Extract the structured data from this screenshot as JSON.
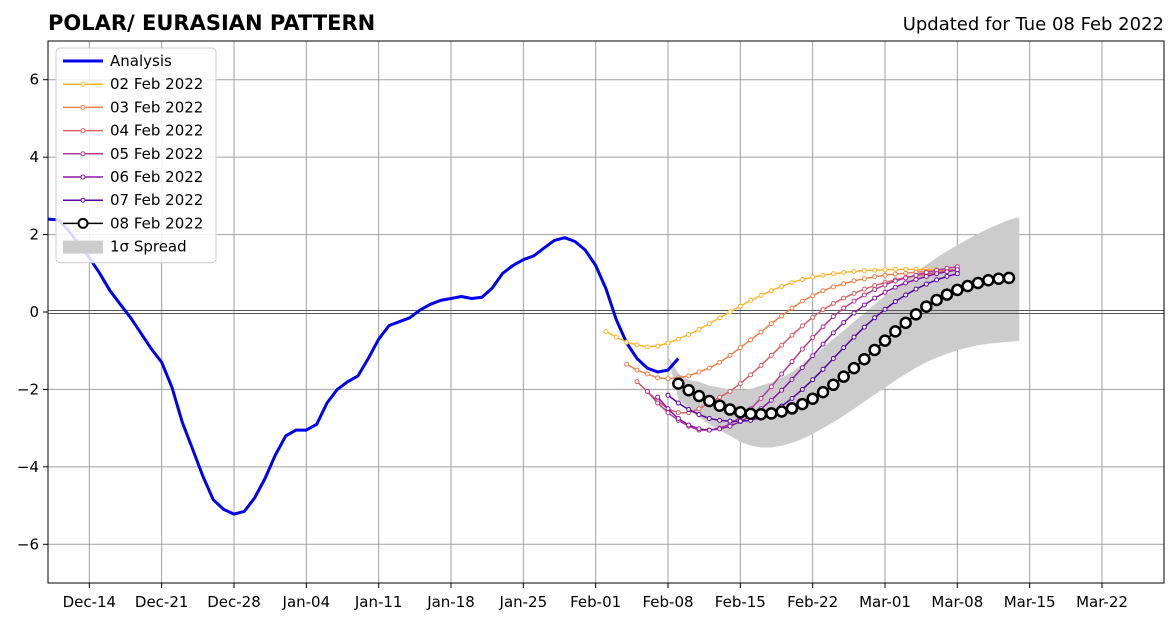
{
  "title_left": "POLAR/ EURASIAN  PATTERN",
  "title_right": "Updated for Tue 08 Feb 2022",
  "chart_data": {
    "type": "line",
    "title": "POLAR/ EURASIAN  PATTERN",
    "subtitle": "Updated for Tue 08 Feb 2022",
    "xlim": [
      "2021-12-10",
      "2022-03-28"
    ],
    "ylim": [
      -7,
      7
    ],
    "grid": true,
    "legend_position": "top-left",
    "x_ticks": [
      {
        "date": "2021-12-14",
        "label": "Dec-14"
      },
      {
        "date": "2021-12-21",
        "label": "Dec-21"
      },
      {
        "date": "2021-12-28",
        "label": "Dec-28"
      },
      {
        "date": "2022-01-04",
        "label": "Jan-04"
      },
      {
        "date": "2022-01-11",
        "label": "Jan-11"
      },
      {
        "date": "2022-01-18",
        "label": "Jan-18"
      },
      {
        "date": "2022-01-25",
        "label": "Jan-25"
      },
      {
        "date": "2022-02-01",
        "label": "Feb-01"
      },
      {
        "date": "2022-02-08",
        "label": "Feb-08"
      },
      {
        "date": "2022-02-15",
        "label": "Feb-15"
      },
      {
        "date": "2022-02-22",
        "label": "Feb-22"
      },
      {
        "date": "2022-03-01",
        "label": "Mar-01"
      },
      {
        "date": "2022-03-08",
        "label": "Mar-08"
      },
      {
        "date": "2022-03-15",
        "label": "Mar-15"
      },
      {
        "date": "2022-03-22",
        "label": "Mar-22"
      }
    ],
    "y_ticks": [
      {
        "value": 6,
        "label": "6"
      },
      {
        "value": 4,
        "label": "4"
      },
      {
        "value": 2,
        "label": "2"
      },
      {
        "value": 0,
        "label": "0"
      },
      {
        "value": -2,
        "label": "−2"
      },
      {
        "value": -4,
        "label": "−4"
      },
      {
        "value": -6,
        "label": "−6"
      }
    ],
    "series": [
      {
        "name": "Analysis",
        "color": "#0000ee",
        "style": "analysis",
        "start": "2021-12-10",
        "values": [
          2.4,
          2.38,
          2.1,
          1.75,
          1.4,
          1.0,
          0.55,
          0.2,
          -0.15,
          -0.55,
          -0.95,
          -1.3,
          -1.95,
          -2.85,
          -3.55,
          -4.25,
          -4.85,
          -5.1,
          -5.22,
          -5.15,
          -4.8,
          -4.3,
          -3.7,
          -3.2,
          -3.05,
          -3.05,
          -2.9,
          -2.35,
          -2.0,
          -1.8,
          -1.65,
          -1.2,
          -0.7,
          -0.35,
          -0.25,
          -0.15,
          0.05,
          0.2,
          0.3,
          0.35,
          0.4,
          0.35,
          0.38,
          0.62,
          1.0,
          1.2,
          1.35,
          1.45,
          1.65,
          1.85,
          1.92,
          1.82,
          1.6,
          1.2,
          0.6,
          -0.2,
          -0.8,
          -1.2,
          -1.45,
          -1.55,
          -1.5,
          -1.2
        ]
      },
      {
        "name": "02 Feb 2022",
        "color": "#fcb52b",
        "style": "forecast",
        "start": "2022-02-02",
        "values": [
          -0.5,
          -0.65,
          -0.78,
          -0.85,
          -0.9,
          -0.88,
          -0.8,
          -0.7,
          -0.58,
          -0.45,
          -0.3,
          -0.15,
          0.0,
          0.15,
          0.3,
          0.43,
          0.55,
          0.66,
          0.76,
          0.84,
          0.9,
          0.95,
          0.99,
          1.02,
          1.05,
          1.07,
          1.08,
          1.09,
          1.1,
          1.1,
          1.1,
          1.1,
          1.1,
          1.1
        ]
      },
      {
        "name": "03 Feb 2022",
        "color": "#f1804a",
        "style": "forecast",
        "start": "2022-02-04",
        "values": [
          -1.35,
          -1.5,
          -1.6,
          -1.7,
          -1.72,
          -1.7,
          -1.65,
          -1.55,
          -1.45,
          -1.3,
          -1.12,
          -0.92,
          -0.72,
          -0.52,
          -0.3,
          -0.1,
          0.1,
          0.28,
          0.42,
          0.55,
          0.65,
          0.73,
          0.8,
          0.86,
          0.91,
          0.95,
          0.98,
          1.0,
          1.03,
          1.05,
          1.07,
          1.08,
          1.09
        ]
      },
      {
        "name": "04 Feb 2022",
        "color": "#da5f66",
        "style": "forecast",
        "start": "2022-02-05",
        "values": [
          -1.8,
          -2.05,
          -2.3,
          -2.5,
          -2.6,
          -2.6,
          -2.5,
          -2.35,
          -2.2,
          -2.05,
          -1.85,
          -1.62,
          -1.38,
          -1.12,
          -0.86,
          -0.6,
          -0.36,
          -0.14,
          0.06,
          0.22,
          0.36,
          0.48,
          0.59,
          0.68,
          0.76,
          0.83,
          0.89,
          0.94,
          0.98,
          1.02,
          1.05,
          1.08
        ]
      },
      {
        "name": "05 Feb 2022",
        "color": "#b53a93",
        "style": "forecast",
        "start": "2022-02-06",
        "values": [
          -2.05,
          -2.35,
          -2.6,
          -2.8,
          -2.95,
          -3.05,
          -3.05,
          -3.0,
          -2.9,
          -2.72,
          -2.5,
          -2.23,
          -1.93,
          -1.6,
          -1.28,
          -0.96,
          -0.66,
          -0.38,
          -0.12,
          0.1,
          0.28,
          0.44,
          0.58,
          0.7,
          0.8,
          0.88,
          0.95,
          1.02,
          1.08,
          1.13,
          1.17
        ]
      },
      {
        "name": "06 Feb 2022",
        "color": "#8c17a6",
        "style": "forecast",
        "start": "2022-02-07",
        "values": [
          -2.2,
          -2.5,
          -2.75,
          -2.92,
          -3.02,
          -3.05,
          -3.02,
          -2.95,
          -2.83,
          -2.68,
          -2.5,
          -2.28,
          -2.02,
          -1.74,
          -1.44,
          -1.13,
          -0.83,
          -0.54,
          -0.27,
          -0.03,
          0.18,
          0.36,
          0.51,
          0.64,
          0.75,
          0.84,
          0.92,
          0.99,
          1.04,
          1.09
        ]
      },
      {
        "name": "07 Feb 2022",
        "color": "#5902a3",
        "style": "forecast",
        "start": "2022-02-08",
        "values": [
          -2.15,
          -2.35,
          -2.52,
          -2.65,
          -2.75,
          -2.8,
          -2.82,
          -2.82,
          -2.8,
          -2.72,
          -2.6,
          -2.43,
          -2.23,
          -2.0,
          -1.75,
          -1.48,
          -1.2,
          -0.92,
          -0.65,
          -0.39,
          -0.15,
          0.07,
          0.27,
          0.44,
          0.59,
          0.72,
          0.83,
          0.92,
          0.99
        ]
      },
      {
        "name": "08 Feb 2022",
        "color": "#000000",
        "style": "current",
        "start": "2022-02-09",
        "values": [
          -1.85,
          -2.02,
          -2.17,
          -2.3,
          -2.42,
          -2.52,
          -2.59,
          -2.63,
          -2.64,
          -2.62,
          -2.57,
          -2.49,
          -2.38,
          -2.24,
          -2.07,
          -1.88,
          -1.67,
          -1.45,
          -1.22,
          -0.98,
          -0.74,
          -0.5,
          -0.28,
          -0.06,
          0.14,
          0.31,
          0.45,
          0.57,
          0.67,
          0.75,
          0.82,
          0.86,
          0.88
        ]
      }
    ],
    "spread": {
      "name": "1σ Spread",
      "color": "#cccccc",
      "start": "2022-02-08",
      "upper": [
        -1.15,
        -1.58,
        -1.75,
        -1.8,
        -1.9,
        -1.95,
        -2.0,
        -2.02,
        -1.98,
        -1.9,
        -1.82,
        -1.7,
        -1.55,
        -1.35,
        -1.15,
        -0.93,
        -0.7,
        -0.48,
        -0.25,
        -0.03,
        0.2,
        0.42,
        0.63,
        0.83,
        1.03,
        1.22,
        1.4,
        1.57,
        1.73,
        1.88,
        2.02,
        2.15,
        2.27,
        2.38,
        2.45
      ],
      "lower": [
        -1.15,
        -2.25,
        -2.5,
        -2.72,
        -2.9,
        -3.05,
        -3.2,
        -3.35,
        -3.45,
        -3.5,
        -3.5,
        -3.45,
        -3.38,
        -3.28,
        -3.15,
        -3.0,
        -2.85,
        -2.68,
        -2.5,
        -2.32,
        -2.13,
        -1.95,
        -1.77,
        -1.6,
        -1.44,
        -1.3,
        -1.18,
        -1.08,
        -0.99,
        -0.92,
        -0.86,
        -0.82,
        -0.79,
        -0.77,
        -0.75
      ]
    }
  }
}
